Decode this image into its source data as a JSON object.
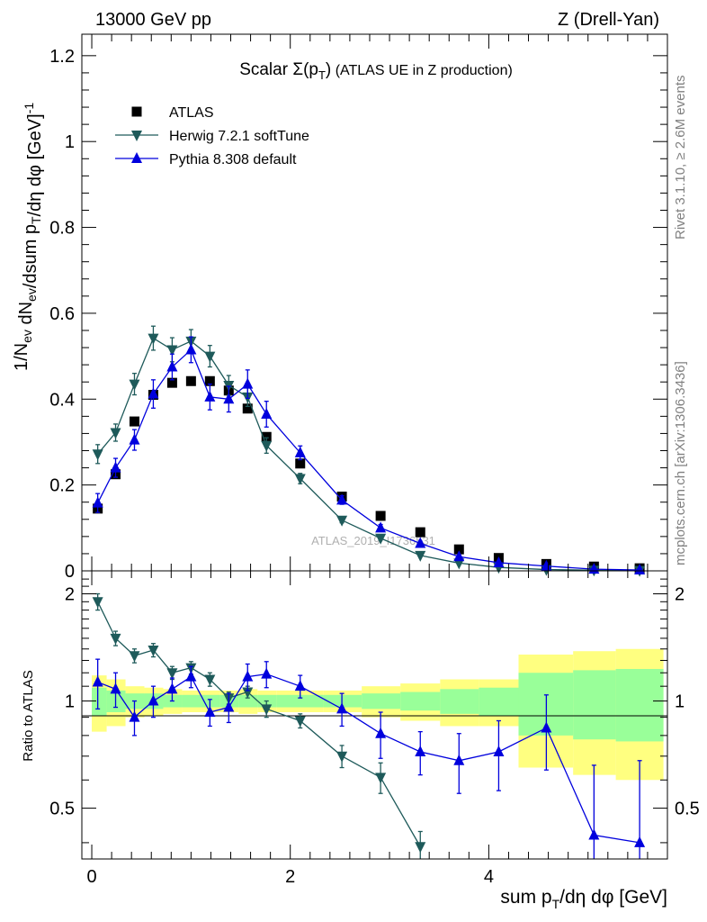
{
  "header": {
    "left": "13000 GeV pp",
    "right": "Z (Drell-Yan)"
  },
  "side_labels": {
    "rivet": "Rivet 3.1.10, ≥ 2.6M events",
    "mcplots": "mcplots.cern.ch [arXiv:1306.3436]"
  },
  "watermark": "ATLAS_2019_I1736531",
  "chart_data": [
    {
      "type": "scatter",
      "title": "Scalar Σ(p_T) (ATLAS UE in Z production)",
      "ylabel": "1/N_ev dN_ev/dsum p_T/dη dφ [GeV]^-1",
      "xlabel": "",
      "xlim": [
        -0.1,
        5.8
      ],
      "ylim": [
        0,
        1.25
      ],
      "yticks": [
        0,
        0.2,
        0.4,
        0.6,
        0.8,
        1,
        1.2
      ],
      "ytick_labels": [
        "0",
        "0.2",
        "0.4",
        "0.6",
        "0.8",
        "1",
        "1.2"
      ],
      "legend_position": "top-left",
      "series": [
        {
          "name": "ATLAS",
          "marker": "square",
          "color": "#000000",
          "x": [
            0.06,
            0.24,
            0.43,
            0.62,
            0.81,
            1.0,
            1.19,
            1.38,
            1.57,
            1.76,
            2.1,
            2.52,
            2.91,
            3.31,
            3.7,
            4.1,
            4.58,
            5.06,
            5.52
          ],
          "y": [
            0.145,
            0.225,
            0.348,
            0.41,
            0.438,
            0.442,
            0.442,
            0.42,
            0.378,
            0.312,
            0.25,
            0.173,
            0.128,
            0.09,
            0.05,
            0.03,
            0.016,
            0.01,
            0.006
          ]
        },
        {
          "name": "Herwig 7.2.1 softTune",
          "marker": "triangle-down",
          "color": "#1e5a5a",
          "x": [
            0.06,
            0.24,
            0.43,
            0.62,
            0.81,
            1.0,
            1.19,
            1.38,
            1.57,
            1.76,
            2.1,
            2.52,
            2.91,
            3.31,
            3.7,
            4.1,
            4.58,
            5.06,
            5.52
          ],
          "y": [
            0.272,
            0.322,
            0.435,
            0.542,
            0.515,
            0.535,
            0.5,
            0.432,
            0.405,
            0.292,
            0.215,
            0.118,
            0.076,
            0.036,
            0.018,
            0.008,
            0.003,
            0.0015,
            0.0008
          ],
          "err": [
            0.022,
            0.02,
            0.025,
            0.028,
            0.028,
            0.027,
            0.025,
            0.023,
            0.022,
            0.018,
            0.012,
            0.006,
            0.004,
            0.002,
            0.001,
            0.001,
            0.001,
            0.001,
            0.001
          ]
        },
        {
          "name": "Pythia 8.308 default",
          "marker": "triangle-up",
          "color": "#0000dd",
          "x": [
            0.06,
            0.24,
            0.43,
            0.62,
            0.81,
            1.0,
            1.19,
            1.38,
            1.57,
            1.76,
            2.1,
            2.52,
            2.91,
            3.31,
            3.7,
            4.1,
            4.58,
            5.06,
            5.52
          ],
          "y": [
            0.158,
            0.24,
            0.305,
            0.412,
            0.475,
            0.515,
            0.405,
            0.4,
            0.435,
            0.365,
            0.275,
            0.165,
            0.1,
            0.064,
            0.033,
            0.019,
            0.011,
            0.004,
            0.002
          ],
          "err": [
            0.022,
            0.022,
            0.024,
            0.033,
            0.03,
            0.03,
            0.03,
            0.03,
            0.033,
            0.03,
            0.016,
            0.01,
            0.008,
            0.005,
            0.003,
            0.002,
            0.002,
            0.001,
            0.001
          ]
        }
      ]
    },
    {
      "type": "line",
      "title": "",
      "ylabel": "Ratio to ATLAS",
      "xlabel": "sum p_T/dη dφ [GeV]",
      "xlim": [
        -0.1,
        5.8
      ],
      "ylim": [
        0.36,
        2.32
      ],
      "yticks": [
        0.5,
        1,
        2
      ],
      "ytick_labels": [
        "0.5",
        "1",
        "2"
      ],
      "xticks": [
        0,
        2,
        4
      ],
      "xtick_labels": [
        "0",
        "2",
        "4"
      ],
      "bands": {
        "x_edges": [
          0.0,
          0.15,
          0.34,
          0.53,
          0.72,
          0.91,
          1.1,
          1.29,
          1.48,
          1.67,
          1.86,
          2.33,
          2.72,
          3.11,
          3.51,
          3.9,
          4.3,
          4.85,
          5.28,
          5.76
        ],
        "yellow_half": [
          0.18,
          0.15,
          0.1,
          0.09,
          0.08,
          0.07,
          0.07,
          0.07,
          0.08,
          0.07,
          0.07,
          0.07,
          0.1,
          0.12,
          0.15,
          0.15,
          0.35,
          0.38,
          0.4
        ],
        "green_half": [
          0.09,
          0.07,
          0.05,
          0.05,
          0.04,
          0.04,
          0.04,
          0.04,
          0.04,
          0.04,
          0.04,
          0.04,
          0.05,
          0.06,
          0.08,
          0.09,
          0.2,
          0.22,
          0.23
        ]
      },
      "series": [
        {
          "name": "Herwig 7.2.1 softTune",
          "marker": "triangle-down",
          "color": "#1e5a5a",
          "x": [
            0.06,
            0.24,
            0.43,
            0.62,
            0.81,
            1.0,
            1.19,
            1.38,
            1.57,
            1.76,
            2.1,
            2.52,
            2.91,
            3.31
          ],
          "y": [
            1.9,
            1.5,
            1.34,
            1.39,
            1.2,
            1.24,
            1.15,
            1.02,
            1.06,
            0.95,
            0.88,
            0.7,
            0.61,
            0.39
          ],
          "err": [
            0.1,
            0.07,
            0.06,
            0.06,
            0.05,
            0.05,
            0.05,
            0.04,
            0.04,
            0.05,
            0.04,
            0.05,
            0.06,
            0.04
          ]
        },
        {
          "name": "Pythia 8.308 default",
          "marker": "triangle-up",
          "color": "#0000dd",
          "x": [
            0.06,
            0.24,
            0.43,
            0.62,
            0.81,
            1.0,
            1.19,
            1.38,
            1.57,
            1.76,
            2.1,
            2.52,
            2.91,
            3.31,
            3.7,
            4.1,
            4.58,
            5.06,
            5.52
          ],
          "y": [
            1.13,
            1.08,
            0.9,
            1.0,
            1.08,
            1.17,
            0.93,
            0.96,
            1.17,
            1.19,
            1.1,
            0.95,
            0.81,
            0.72,
            0.68,
            0.72,
            0.84,
            0.42,
            0.4
          ],
          "err": [
            0.18,
            0.12,
            0.1,
            0.1,
            0.08,
            0.08,
            0.08,
            0.09,
            0.1,
            0.1,
            0.08,
            0.1,
            0.12,
            0.1,
            0.13,
            0.16,
            0.2,
            0.24,
            0.28
          ]
        }
      ]
    }
  ]
}
